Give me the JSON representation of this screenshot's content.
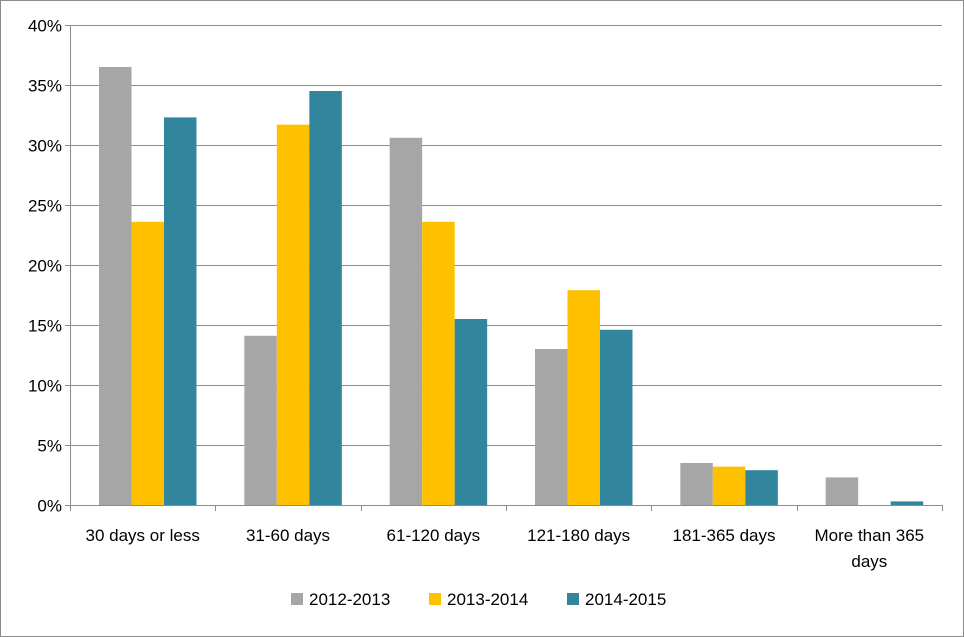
{
  "chart_data": {
    "type": "bar",
    "title": "",
    "xlabel": "",
    "ylabel": "",
    "ylim": [
      0,
      0.4
    ],
    "y_ticks": [
      {
        "value": 0,
        "label": "0%"
      },
      {
        "value": 0.05,
        "label": "5%"
      },
      {
        "value": 0.1,
        "label": "10%"
      },
      {
        "value": 0.15,
        "label": "15%"
      },
      {
        "value": 0.2,
        "label": "20%"
      },
      {
        "value": 0.25,
        "label": "25%"
      },
      {
        "value": 0.3,
        "label": "30%"
      },
      {
        "value": 0.35,
        "label": "35%"
      },
      {
        "value": 0.4,
        "label": "40%"
      }
    ],
    "categories": [
      [
        "30 days or less"
      ],
      [
        "31-60 days"
      ],
      [
        "61-120 days"
      ],
      [
        "121-180 days"
      ],
      [
        "181-365 days"
      ],
      [
        "More than 365",
        "days"
      ]
    ],
    "series": [
      {
        "name": "2012-2013",
        "color": "#a6a6a6",
        "values": [
          0.365,
          0.141,
          0.306,
          0.13,
          0.035,
          0.023
        ]
      },
      {
        "name": "2013-2014",
        "color": "#ffc000",
        "values": [
          0.236,
          0.317,
          0.236,
          0.179,
          0.032,
          0.0
        ]
      },
      {
        "name": "2014-2015",
        "color": "#31859c",
        "values": [
          0.323,
          0.345,
          0.155,
          0.146,
          0.029,
          0.003
        ]
      }
    ],
    "grid": true,
    "legend_position": "bottom"
  }
}
